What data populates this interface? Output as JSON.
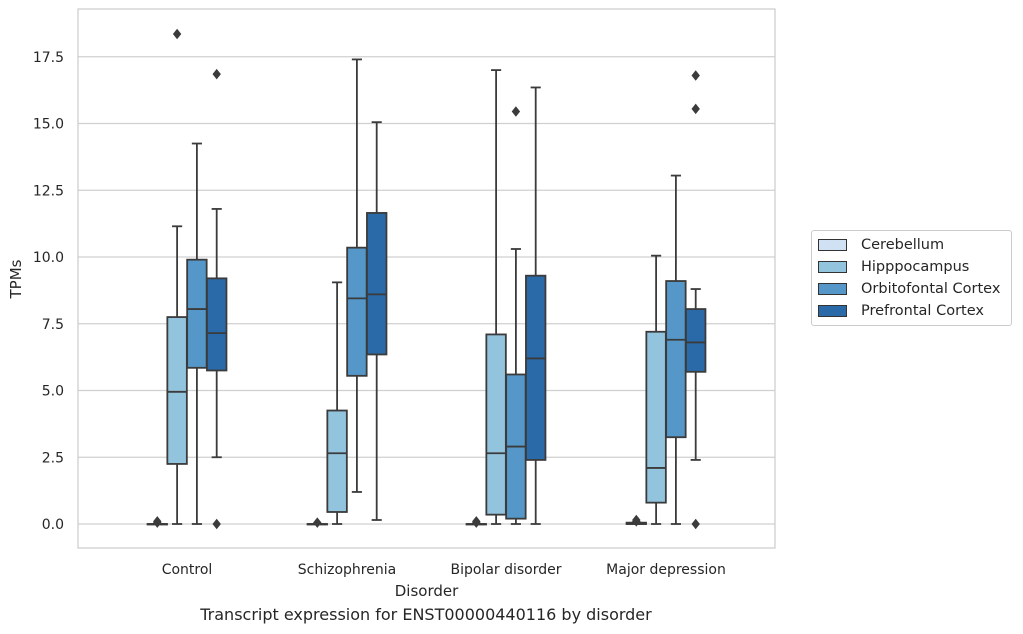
{
  "chart_data": {
    "type": "box",
    "title": "Transcript expression for ENST00000440116 by disorder",
    "xlabel": "Disorder",
    "ylabel": "TPMs",
    "ylim": [
      -0.9,
      19.3
    ],
    "yticks": [
      "0.0",
      "2.5",
      "5.0",
      "7.5",
      "10.0",
      "12.5",
      "15.0",
      "17.5"
    ],
    "ytick_values": [
      0,
      2.5,
      5,
      7.5,
      10,
      12.5,
      15,
      17.5
    ],
    "grid": "horizontal",
    "legend_position": "right",
    "categories": [
      "Control",
      "Schizophrenia",
      "Bipolar disorder",
      "Major depression"
    ],
    "series": [
      {
        "name": "Cerebellum",
        "color": "#cfe1f2",
        "boxes": [
          {
            "min": 0,
            "q1": 0,
            "median": 0,
            "q3": 0,
            "max": 0,
            "outliers": [
              0.05,
              0.1
            ]
          },
          {
            "min": 0,
            "q1": 0,
            "median": 0,
            "q3": 0,
            "max": 0,
            "outliers": [
              0.05
            ]
          },
          {
            "min": 0,
            "q1": 0,
            "median": 0,
            "q3": 0,
            "max": 0,
            "outliers": [
              0.05,
              0.1
            ]
          },
          {
            "min": 0,
            "q1": 0,
            "median": 0,
            "q3": 0.05,
            "max": 0.05,
            "outliers": [
              0.15,
              0.1
            ]
          }
        ]
      },
      {
        "name": "Hipppocampus",
        "color": "#93c4de",
        "boxes": [
          {
            "min": 0,
            "q1": 2.25,
            "median": 4.95,
            "q3": 7.75,
            "max": 11.15,
            "outliers": [
              18.35
            ]
          },
          {
            "min": 0,
            "q1": 0.45,
            "median": 2.65,
            "q3": 4.25,
            "max": 9.05,
            "outliers": []
          },
          {
            "min": 0,
            "q1": 0.35,
            "median": 2.65,
            "q3": 7.1,
            "max": 17.0,
            "outliers": []
          },
          {
            "min": 0,
            "q1": 0.8,
            "median": 2.1,
            "q3": 7.2,
            "max": 10.05,
            "outliers": []
          }
        ]
      },
      {
        "name": "Orbitofontal Cortex",
        "color": "#5597c8",
        "boxes": [
          {
            "min": 0,
            "q1": 5.85,
            "median": 8.05,
            "q3": 9.9,
            "max": 14.25,
            "outliers": []
          },
          {
            "min": 1.2,
            "q1": 5.55,
            "median": 8.45,
            "q3": 10.35,
            "max": 17.4,
            "outliers": []
          },
          {
            "min": 0,
            "q1": 0.2,
            "median": 2.9,
            "q3": 5.6,
            "max": 10.3,
            "outliers": [
              15.45
            ]
          },
          {
            "min": 0,
            "q1": 3.25,
            "median": 6.9,
            "q3": 9.1,
            "max": 13.05,
            "outliers": []
          }
        ]
      },
      {
        "name": "Prefrontal Cortex",
        "color": "#2b6aa9",
        "boxes": [
          {
            "min": 2.5,
            "q1": 5.75,
            "median": 7.15,
            "q3": 9.2,
            "max": 11.8,
            "outliers": [
              16.85,
              0
            ]
          },
          {
            "min": 0.15,
            "q1": 6.35,
            "median": 8.6,
            "q3": 11.65,
            "max": 15.05,
            "outliers": []
          },
          {
            "min": 0,
            "q1": 2.4,
            "median": 6.2,
            "q3": 9.3,
            "max": 16.35,
            "outliers": []
          },
          {
            "min": 2.4,
            "q1": 5.7,
            "median": 6.8,
            "q3": 8.05,
            "max": 8.8,
            "outliers": [
              16.8,
              15.55,
              0
            ]
          }
        ]
      }
    ]
  }
}
